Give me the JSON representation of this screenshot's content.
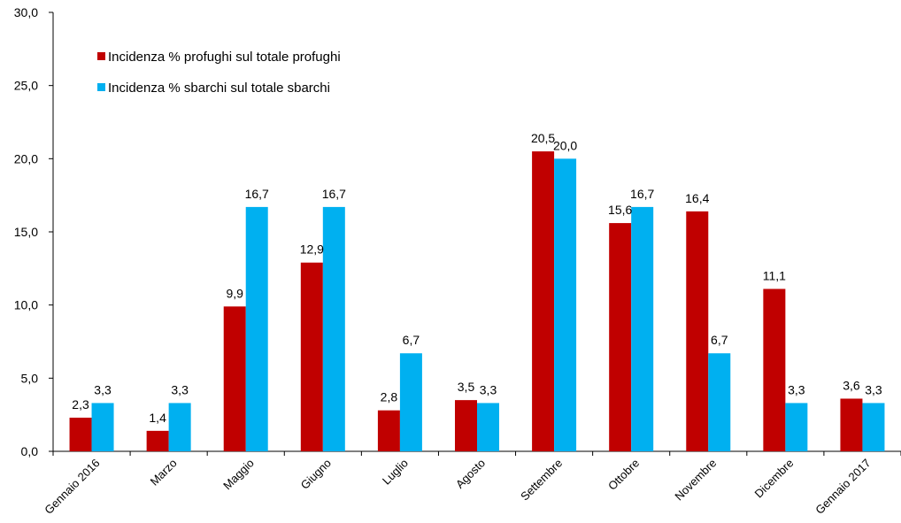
{
  "chart_data": {
    "type": "bar",
    "categories": [
      "Gennaio 2016",
      "Marzo",
      "Maggio",
      "Giugno",
      "Luglio",
      "Agosto",
      "Settembre",
      "Ottobre",
      "Novembre",
      "Dicembre",
      "Gennaio 2017"
    ],
    "series": [
      {
        "name": "Incidenza % profughi sul totale profughi",
        "color": "#C00000",
        "values": [
          2.3,
          1.4,
          9.9,
          12.9,
          2.8,
          3.5,
          20.5,
          15.6,
          16.4,
          11.1,
          3.6
        ],
        "labels": [
          "2,3",
          "1,4",
          "9,9",
          "12,9",
          "2,8",
          "3,5",
          "20,5",
          "15,6",
          "16,4",
          "11,1",
          "3,6"
        ]
      },
      {
        "name": "Incidenza % sbarchi sul totale sbarchi",
        "color": "#00B0F0",
        "values": [
          3.3,
          3.3,
          16.7,
          16.7,
          6.7,
          3.3,
          20.0,
          16.7,
          6.7,
          3.3,
          3.3
        ],
        "labels": [
          "3,3",
          "3,3",
          "16,7",
          "16,7",
          "6,7",
          "3,3",
          "20,0",
          "16,7",
          "6,7",
          "3,3",
          "3,3"
        ]
      }
    ],
    "yticks": [
      "0,0",
      "5,0",
      "10,0",
      "15,0",
      "20,0",
      "25,0",
      "30,0"
    ],
    "ylim": [
      0,
      30
    ],
    "grid": false,
    "legend_position": "top-left"
  }
}
